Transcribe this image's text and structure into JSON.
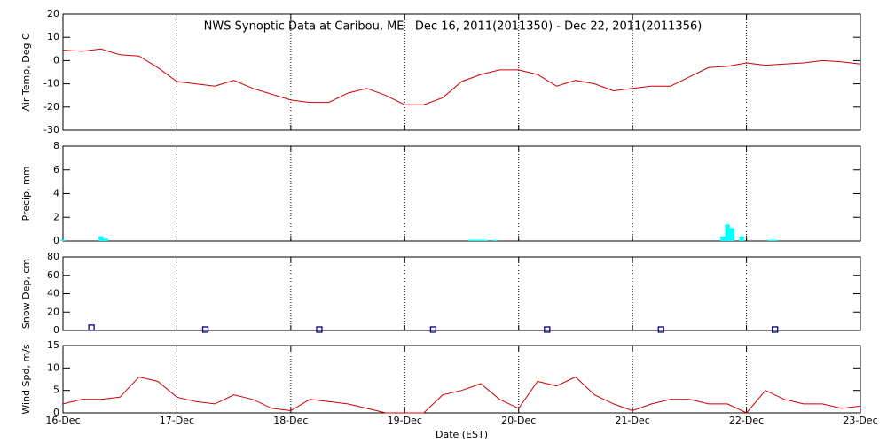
{
  "chart_data": [
    {
      "type": "line",
      "title": "NWS Synoptic Data at Caribou, ME   Dec 16, 2011(2011350) - Dec 22, 2011(2011356)",
      "ylabel": "Air Temp, Deg C",
      "color": "#cc0000",
      "grid": true,
      "xlim": [
        0,
        168
      ],
      "xticks": [
        0,
        24,
        48,
        72,
        96,
        120,
        144,
        168
      ],
      "ylim": [
        -30,
        20
      ],
      "yticks": [
        20,
        10,
        0,
        -10,
        -20,
        -30
      ],
      "x": [
        0,
        4,
        8,
        12,
        16,
        20,
        24,
        28,
        32,
        36,
        40,
        44,
        48,
        52,
        56,
        60,
        64,
        68,
        72,
        76,
        80,
        84,
        88,
        92,
        96,
        100,
        104,
        108,
        112,
        116,
        120,
        124,
        128,
        132,
        136,
        140,
        144,
        148,
        152,
        156,
        160,
        164,
        168
      ],
      "values": [
        4.5,
        4,
        5,
        2.5,
        2,
        -3,
        -9,
        -10,
        -11,
        -8.5,
        -12,
        -14.5,
        -17,
        -18,
        -18,
        -14,
        -12,
        -15,
        -19,
        -19,
        -16,
        -9,
        -6,
        -4,
        -4,
        -6,
        -11,
        -8.5,
        -10,
        -13,
        -12,
        -11,
        -11,
        -7,
        -3,
        -2.5,
        -1,
        -2,
        -1.5,
        -1,
        0,
        -0.5,
        -1.5
      ]
    },
    {
      "type": "bar",
      "ylabel": "Precip, mm",
      "color": "#00ffff",
      "grid": true,
      "xlim": [
        0,
        168
      ],
      "xticks": [
        0,
        24,
        48,
        72,
        96,
        120,
        144,
        168
      ],
      "ylim": [
        0,
        8
      ],
      "yticks": [
        0,
        2,
        4,
        6,
        8
      ],
      "x": [
        0,
        8,
        9,
        86,
        87,
        88,
        89,
        91,
        139,
        140,
        141,
        143,
        149,
        150
      ],
      "values": [
        0.1,
        0.4,
        0.2,
        0.1,
        0.1,
        0.1,
        0.1,
        0.1,
        0.4,
        1.4,
        1.1,
        0.4,
        0.1,
        0.1
      ]
    },
    {
      "type": "scatter",
      "ylabel": "Snow Dep, cm",
      "color": "#000080",
      "grid": true,
      "xlim": [
        0,
        168
      ],
      "xticks": [
        0,
        24,
        48,
        72,
        96,
        120,
        144,
        168
      ],
      "ylim": [
        0,
        80
      ],
      "yticks": [
        0,
        20,
        40,
        60,
        80
      ],
      "x": [
        6,
        30,
        54,
        78,
        102,
        126,
        150
      ],
      "values": [
        3,
        1,
        1,
        1,
        1,
        1,
        1
      ]
    },
    {
      "type": "line",
      "ylabel": "Wind Spd, m/s",
      "xlabel": "Date (EST)",
      "color": "#cc0000",
      "grid": true,
      "xlim": [
        0,
        168
      ],
      "xticks": [
        {
          "value": 0,
          "label": "16-Dec"
        },
        {
          "value": 24,
          "label": "17-Dec"
        },
        {
          "value": 48,
          "label": "18-Dec"
        },
        {
          "value": 72,
          "label": "19-Dec"
        },
        {
          "value": 96,
          "label": "20-Dec"
        },
        {
          "value": 120,
          "label": "21-Dec"
        },
        {
          "value": 144,
          "label": "22-Dec"
        },
        {
          "value": 168,
          "label": "23-Dec"
        }
      ],
      "ylim": [
        0,
        15
      ],
      "yticks": [
        0,
        5,
        10,
        15
      ],
      "x": [
        0,
        4,
        8,
        12,
        16,
        20,
        24,
        28,
        32,
        36,
        40,
        44,
        48,
        52,
        56,
        60,
        64,
        68,
        72,
        76,
        80,
        84,
        88,
        92,
        96,
        100,
        104,
        108,
        112,
        116,
        120,
        124,
        128,
        132,
        136,
        140,
        144,
        148,
        152,
        156,
        160,
        164,
        168
      ],
      "values": [
        2,
        3,
        3,
        3.5,
        8,
        7,
        3.5,
        2.5,
        2,
        4,
        3,
        1,
        0.5,
        3,
        2.5,
        2,
        1,
        0,
        0,
        0,
        4,
        5,
        6.5,
        3,
        1,
        7,
        6,
        8,
        4,
        2,
        0.5,
        2,
        3,
        3,
        2,
        2,
        0,
        5,
        3,
        2,
        2,
        1,
        1.5
      ]
    }
  ]
}
